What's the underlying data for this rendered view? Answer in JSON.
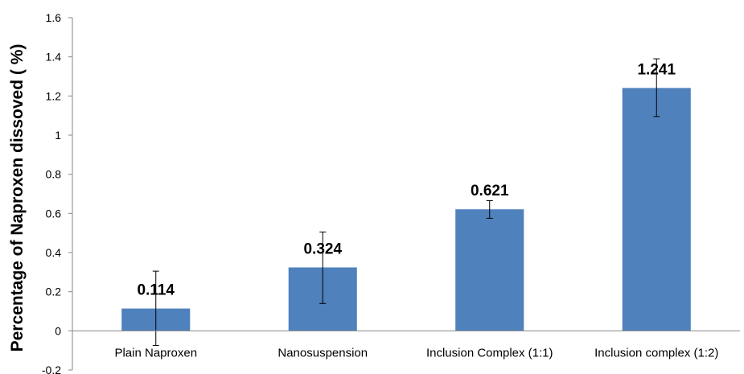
{
  "chart_data": {
    "type": "bar",
    "title": "",
    "xlabel": "",
    "ylabel": "Percentage of Naproxen dissoved ( %)",
    "ylim": [
      -0.2,
      1.6
    ],
    "yticks": [
      -0.2,
      0,
      0.2,
      0.4,
      0.6,
      0.8,
      1,
      1.2,
      1.4,
      1.6
    ],
    "ytick_labels": [
      "-0.2",
      "0",
      "0.2",
      "0.4",
      "0.6",
      "0.8",
      "1",
      "1.2",
      "1.4",
      "1.6"
    ],
    "categories": [
      "Plain Naproxen",
      "Nanosuspension",
      "Inclusion Complex (1:1)",
      "Inclusion complex (1:2)"
    ],
    "values": [
      0.114,
      0.324,
      0.621,
      1.241
    ],
    "data_labels": [
      "0.114",
      "0.324",
      "0.621",
      "1.241"
    ],
    "error_low": [
      -0.075,
      0.14,
      0.575,
      1.095
    ],
    "error_high": [
      0.305,
      0.505,
      0.665,
      1.39
    ],
    "grid": false,
    "legend": "none",
    "bar_color": "#4f81bd"
  }
}
